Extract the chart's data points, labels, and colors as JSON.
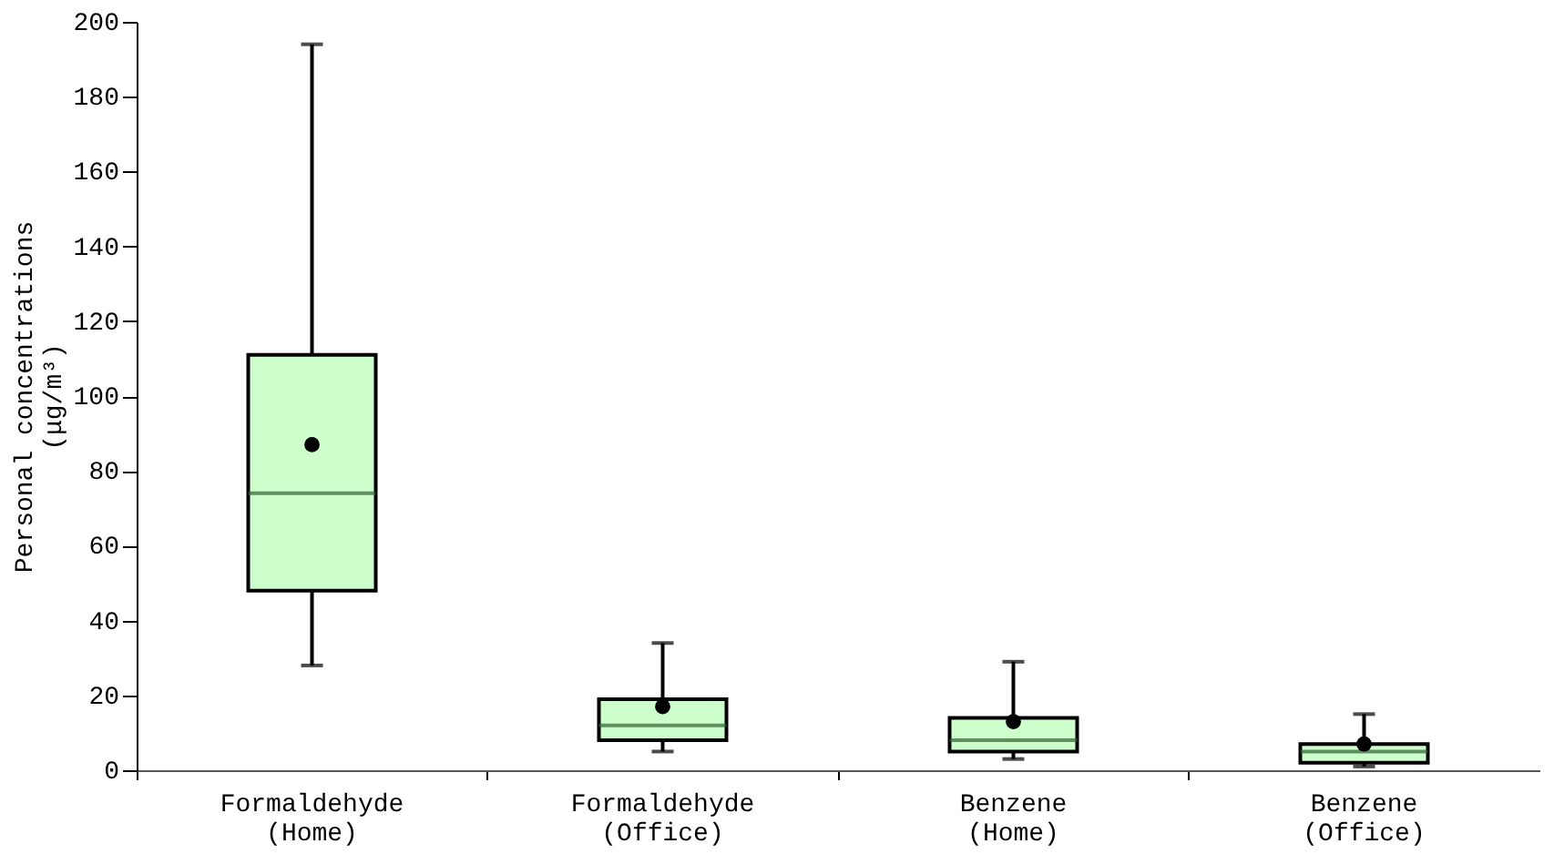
{
  "chart_data": {
    "type": "box",
    "ylabel": "Personal concentrations\n(μg/m³)",
    "categories": [
      "Formaldehyde\n(Home)",
      "Formaldehyde\n(Office)",
      "Benzene\n(Home)",
      "Benzene\n(Office)"
    ],
    "boxes": [
      {
        "low": 28,
        "q1": 48,
        "median": 74,
        "q3": 111,
        "high": 194,
        "mean": 87
      },
      {
        "low": 5,
        "q1": 8,
        "median": 12,
        "q3": 19,
        "high": 34,
        "mean": 17
      },
      {
        "low": 3,
        "q1": 5,
        "median": 8,
        "q3": 14,
        "high": 29,
        "mean": 13
      },
      {
        "low": 1,
        "q1": 2,
        "median": 5,
        "q3": 7,
        "high": 15,
        "mean": 7
      }
    ],
    "color": "#ccffcc",
    "ylim": [
      0,
      200
    ],
    "yticks": [
      0,
      20,
      40,
      60,
      80,
      100,
      120,
      140,
      160,
      180,
      200
    ]
  }
}
